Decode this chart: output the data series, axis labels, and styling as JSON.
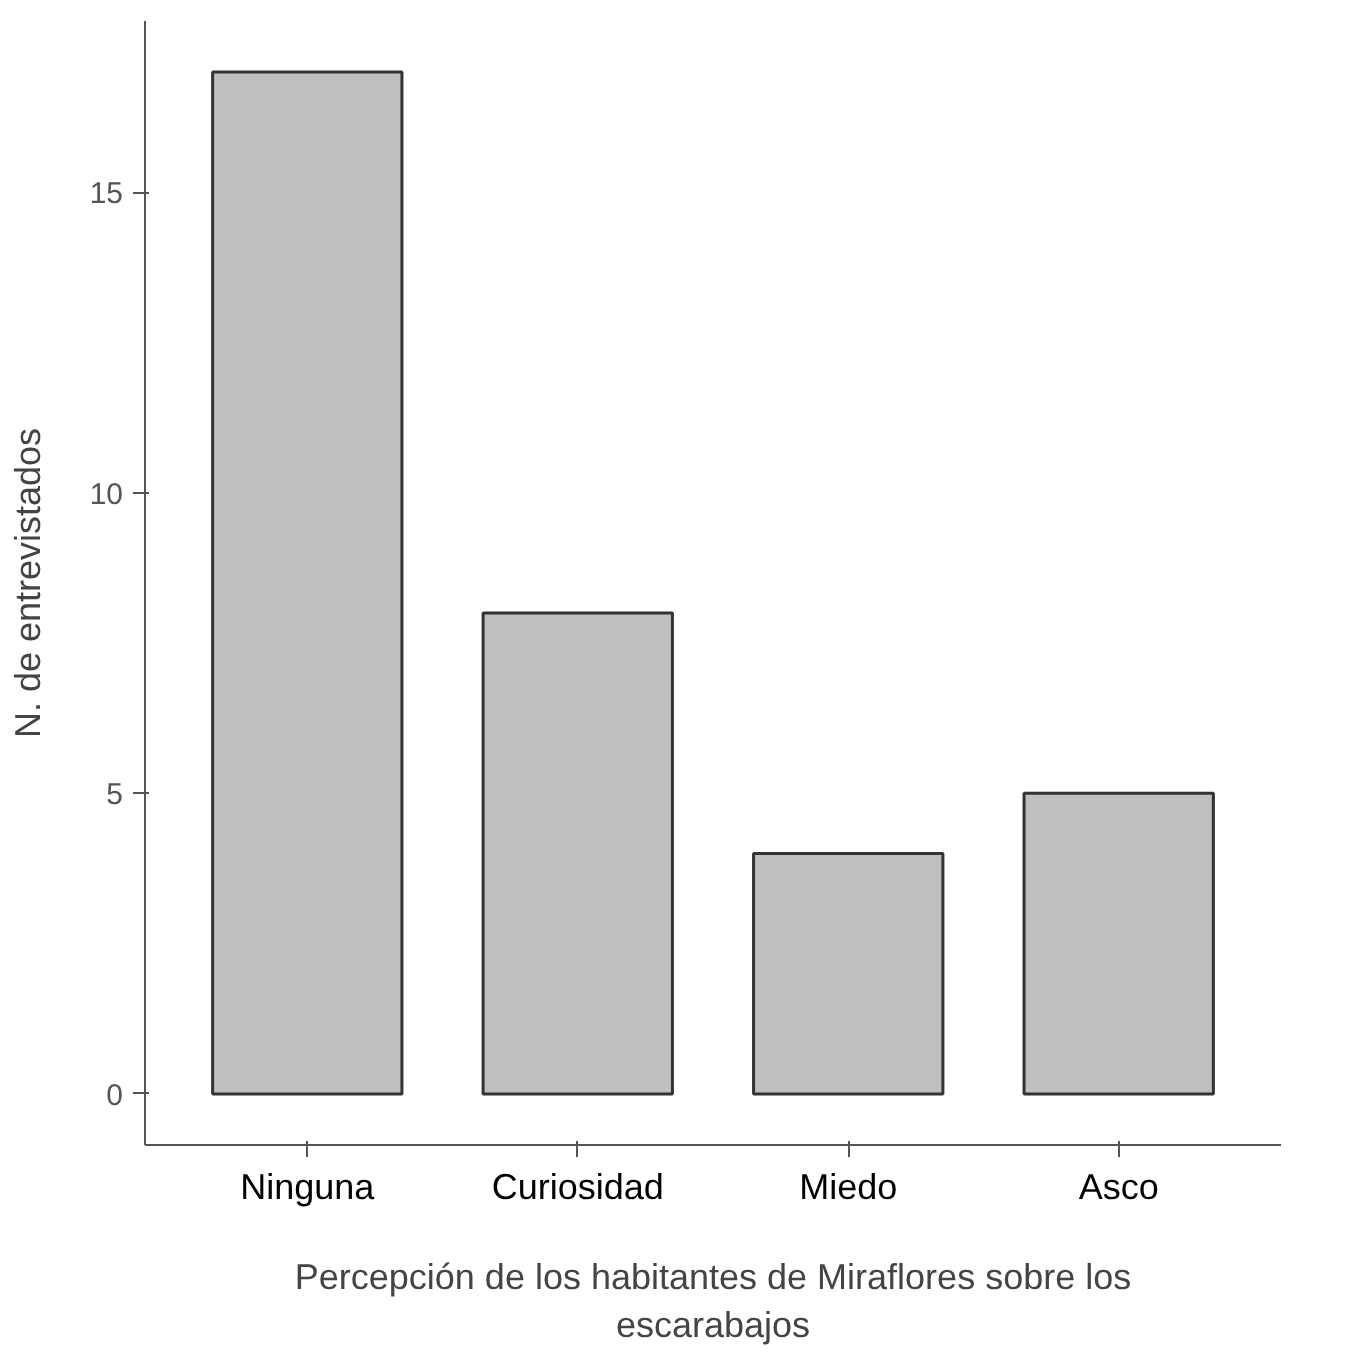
{
  "chart_data": {
    "type": "bar",
    "xlabel": "Percepción de los habitantes de Miraflores sobre los escarabajos",
    "ylabel": "N. de entrevistados",
    "categories": [
      "Ninguna",
      "Curiosidad",
      "Miedo",
      "Asco"
    ],
    "values": [
      17,
      8,
      4,
      5
    ],
    "color": "#bfbfbf",
    "ylim": [
      -0.85,
      17.85
    ],
    "yticks": [
      0,
      5,
      10,
      15
    ],
    "grid": false
  }
}
